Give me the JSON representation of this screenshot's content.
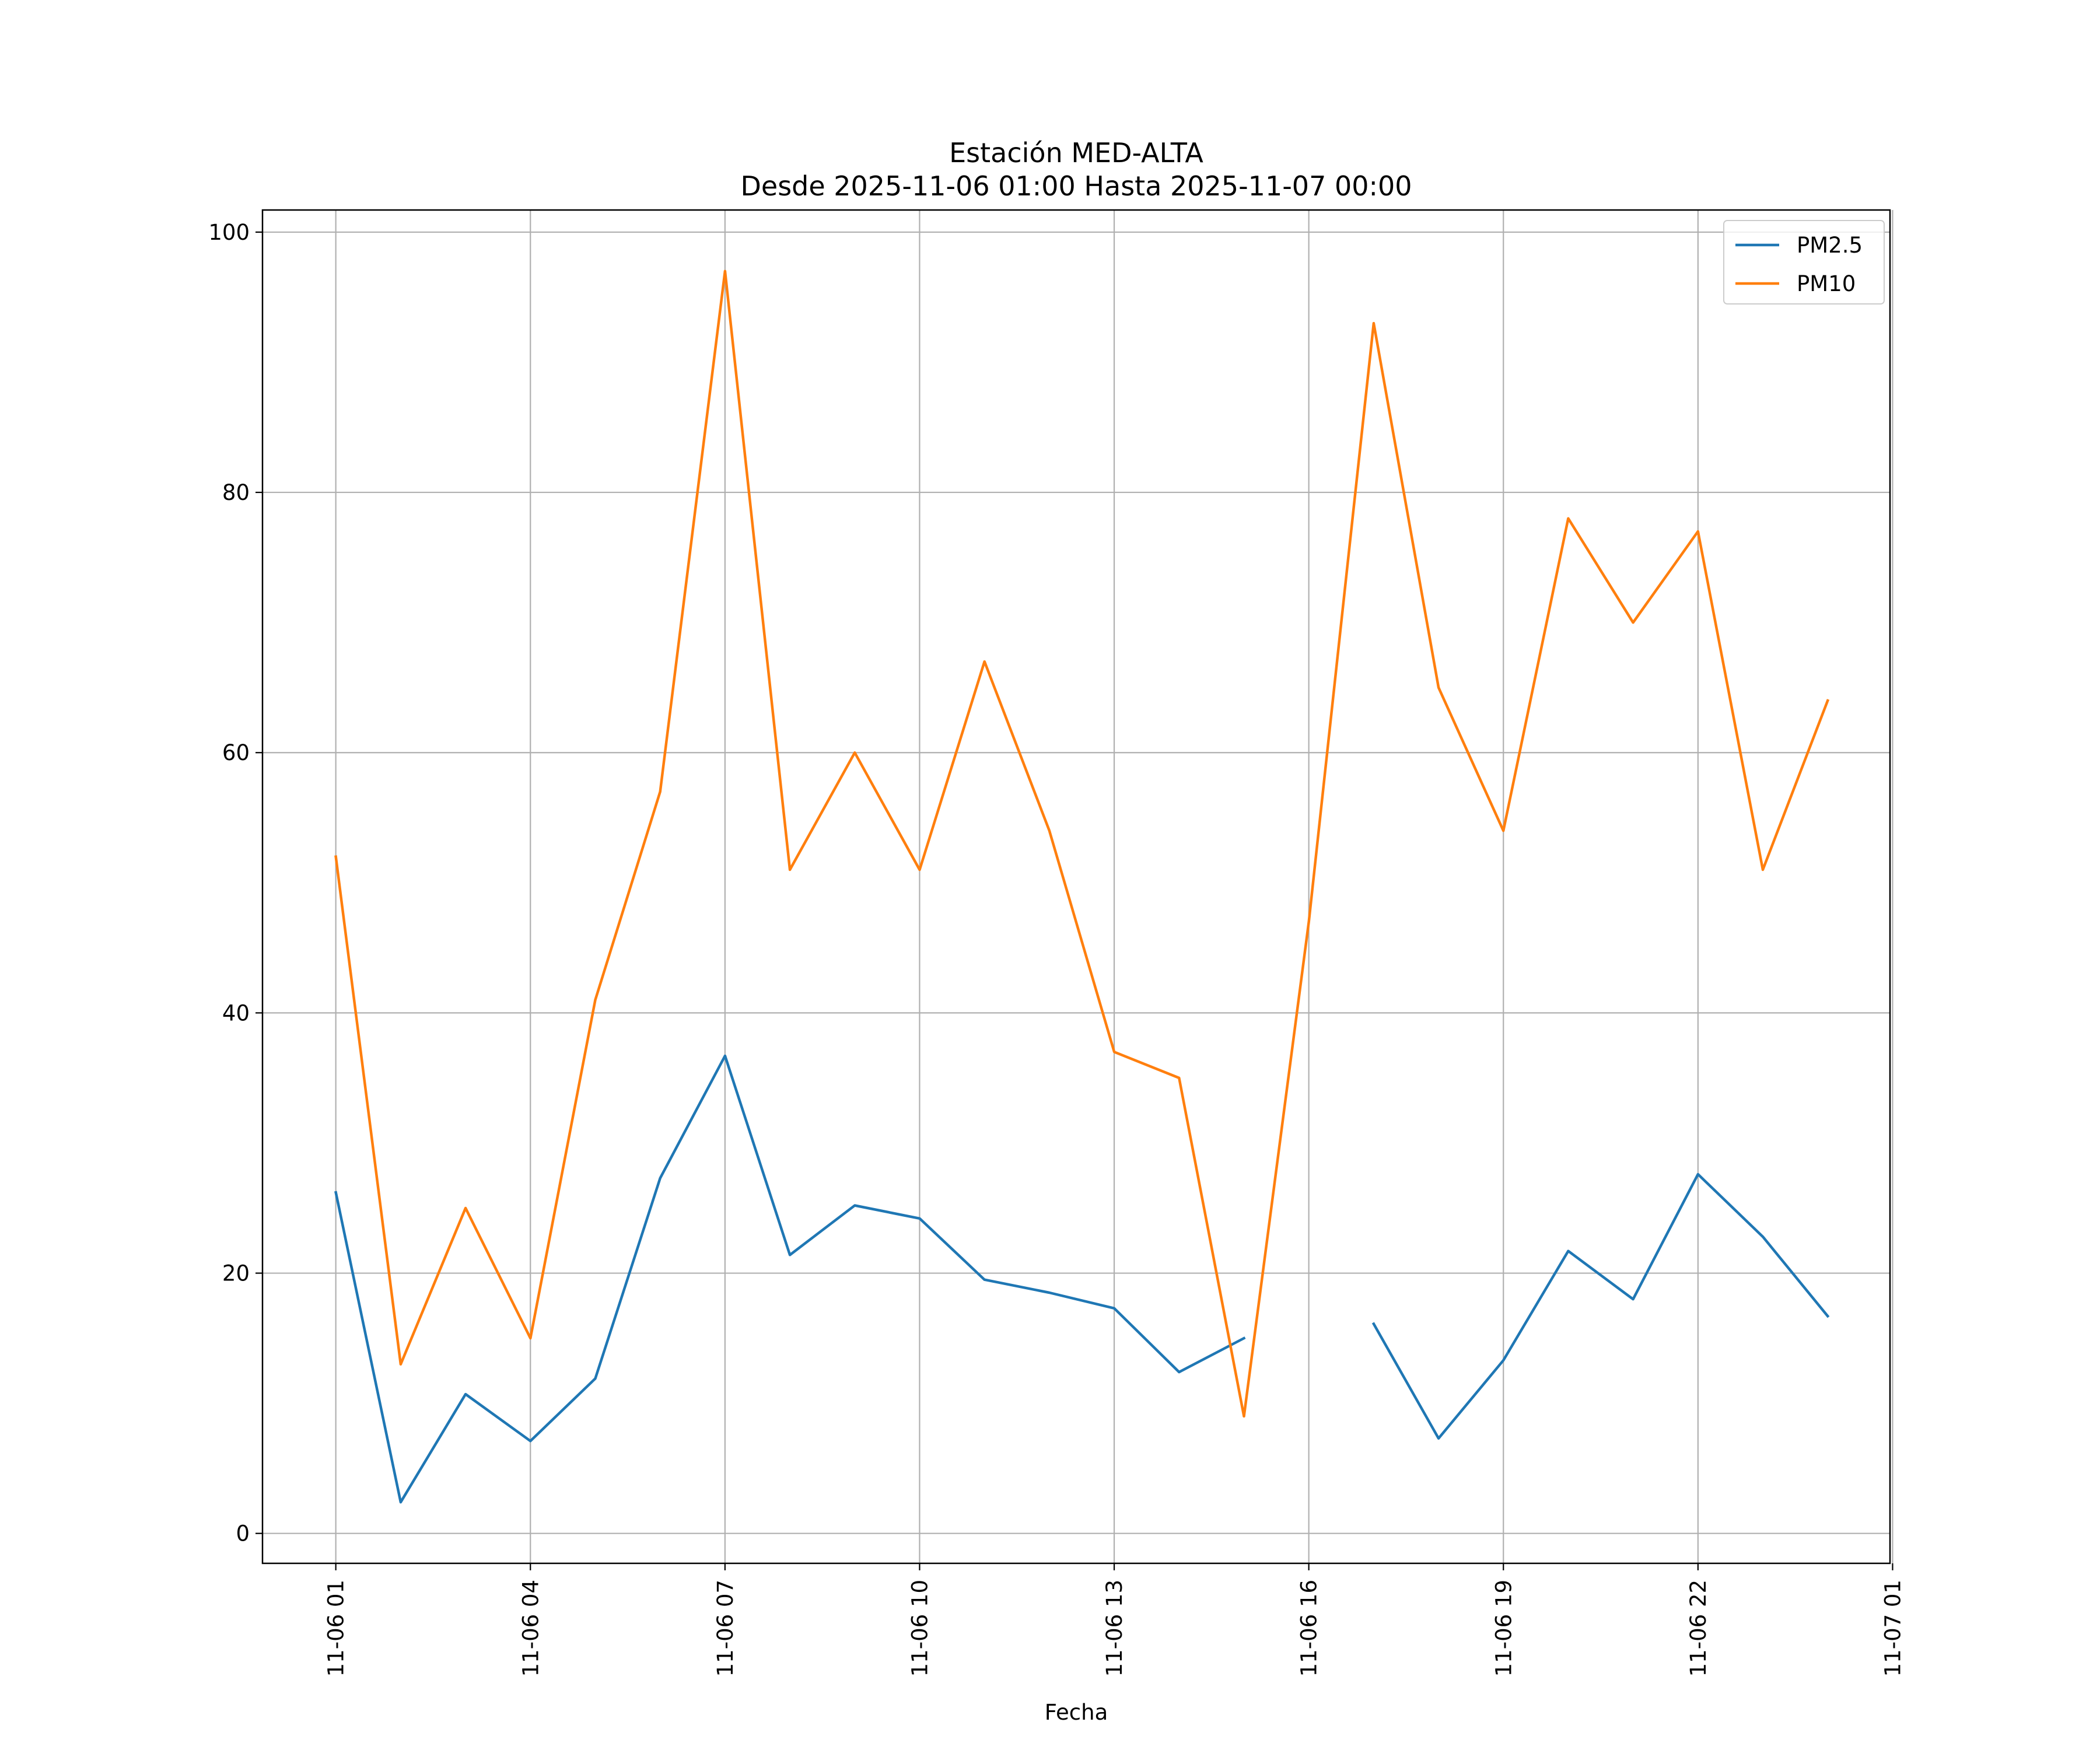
{
  "chart_data": {
    "type": "line",
    "title_line1": "Estación MED-ALTA",
    "title_line2": "Desde 2025-11-06 01:00 Hasta 2025-11-07 00:00",
    "xlabel": "Fecha",
    "ylabel": "",
    "x_hours": [
      1,
      2,
      3,
      4,
      5,
      6,
      7,
      8,
      9,
      10,
      11,
      12,
      13,
      14,
      15,
      16,
      17,
      18,
      19,
      20,
      21,
      22,
      23,
      24
    ],
    "xlim_hours": [
      -0.13,
      24.96
    ],
    "ylim": [
      -2.3,
      101.7
    ],
    "x_ticks": [
      {
        "hour": 1,
        "label": "11-06 01"
      },
      {
        "hour": 4,
        "label": "11-06 04"
      },
      {
        "hour": 7,
        "label": "11-06 07"
      },
      {
        "hour": 10,
        "label": "11-06 10"
      },
      {
        "hour": 13,
        "label": "11-06 13"
      },
      {
        "hour": 16,
        "label": "11-06 16"
      },
      {
        "hour": 19,
        "label": "11-06 19"
      },
      {
        "hour": 22,
        "label": "11-06 22"
      },
      {
        "hour": 25,
        "label": "11-07 01"
      }
    ],
    "y_ticks": [
      0,
      20,
      40,
      60,
      80,
      100
    ],
    "grid": true,
    "legend_position": "top-right",
    "series": [
      {
        "name": "PM2.5",
        "color": "#1f77b4",
        "values": [
          26.2,
          2.4,
          10.7,
          7.1,
          11.9,
          27.3,
          36.7,
          21.4,
          25.2,
          24.2,
          19.5,
          18.5,
          17.3,
          12.4,
          15.0,
          null,
          16.1,
          7.3,
          13.3,
          21.7,
          18.0,
          27.6,
          22.8,
          16.7
        ]
      },
      {
        "name": "PM10",
        "color": "#ff7f0e",
        "values": [
          52,
          13,
          25,
          15,
          41,
          57,
          97,
          51,
          60,
          51,
          67,
          54,
          37,
          35,
          9,
          47,
          93,
          65,
          54,
          78,
          70,
          77,
          51,
          64
        ]
      }
    ]
  }
}
